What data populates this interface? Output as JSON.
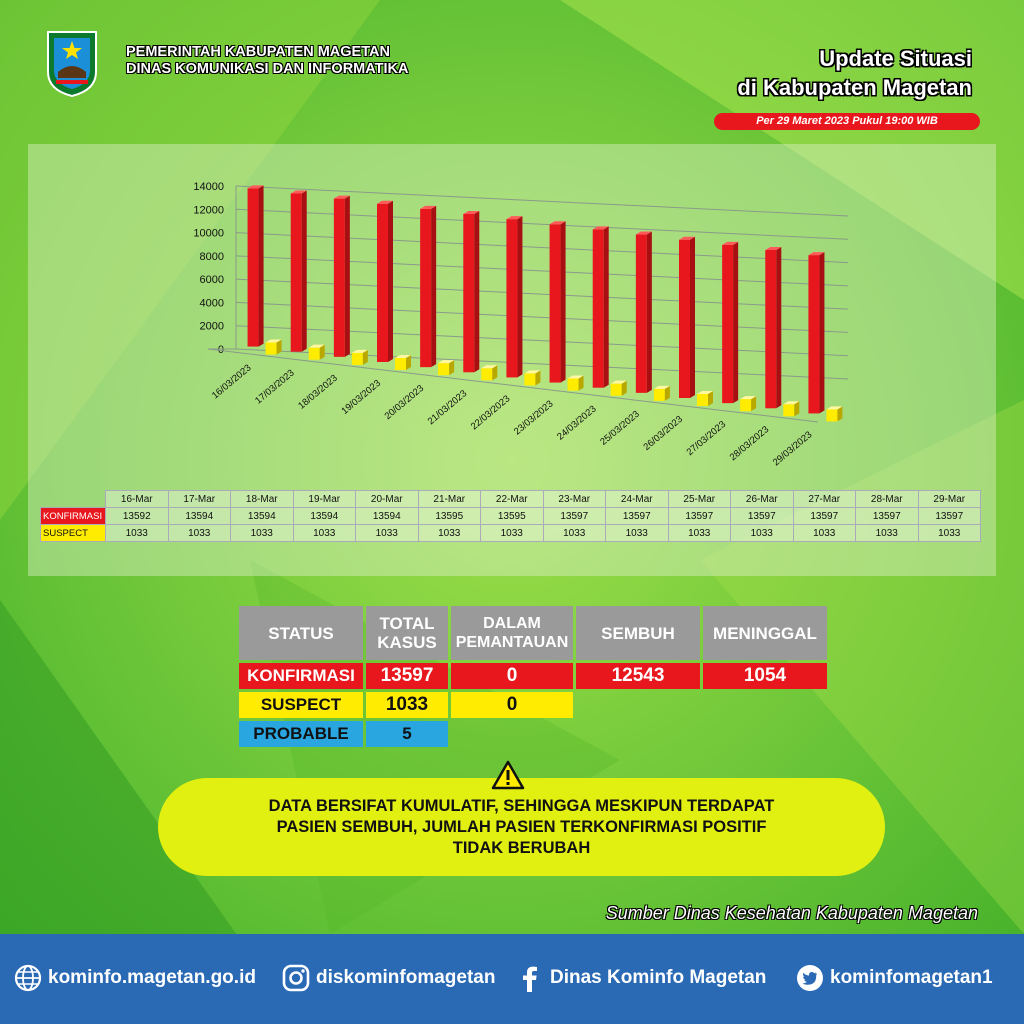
{
  "header": {
    "org_line1": "PEMERINTAH KABUPATEN MAGETAN",
    "org_line2": "DINAS KOMUNIKASI DAN INFORMATIKA",
    "title_line1": "Update Situasi",
    "title_line2": "di Kabupaten Magetan",
    "date": "Per 29 Maret 2023 Pukul 19:00 WIB"
  },
  "colors": {
    "konfirmasi": "#e8171d",
    "suspect": "#ffec00",
    "probable": "#29a5e0",
    "header": "#9a9a9a"
  },
  "chart_data": {
    "type": "bar",
    "categories": [
      "16/03/2023",
      "17/03/2023",
      "18/03/2023",
      "19/03/2023",
      "20/03/2023",
      "21/03/2023",
      "22/03/2023",
      "23/03/2023",
      "24/03/2023",
      "25/03/2023",
      "26/03/2023",
      "27/03/2023",
      "28/03/2023",
      "29/03/2023"
    ],
    "series": [
      {
        "name": "KONFIRMASI",
        "values": [
          13592,
          13594,
          13594,
          13594,
          13594,
          13595,
          13595,
          13597,
          13597,
          13597,
          13597,
          13597,
          13597,
          13597
        ]
      },
      {
        "name": "SUSPECT",
        "values": [
          1033,
          1033,
          1033,
          1033,
          1033,
          1033,
          1033,
          1033,
          1033,
          1033,
          1033,
          1033,
          1033,
          1033
        ]
      }
    ],
    "yticks": [
      "0",
      "2000",
      "4000",
      "6000",
      "8000",
      "10000",
      "12000",
      "14000"
    ],
    "ylim": [
      0,
      14000
    ],
    "table_headers": [
      "16-Mar",
      "17-Mar",
      "18-Mar",
      "19-Mar",
      "20-Mar",
      "21-Mar",
      "22-Mar",
      "23-Mar",
      "24-Mar",
      "25-Mar",
      "26-Mar",
      "27-Mar",
      "28-Mar",
      "29-Mar"
    ]
  },
  "status": {
    "headers": {
      "status": "STATUS",
      "total1": "TOTAL",
      "total2": "KASUS",
      "dalam1": "DALAM",
      "dalam2": "PEMANTAUAN",
      "sembuh": "SEMBUH",
      "meninggal": "MENINGGAL"
    },
    "konfirmasi": {
      "label": "KONFIRMASI",
      "total": "13597",
      "dalam": "0",
      "sembuh": "12543",
      "meninggal": "1054"
    },
    "suspect": {
      "label": "SUSPECT",
      "total": "1033",
      "dalam": "0"
    },
    "probable": {
      "label": "PROBABLE",
      "total": "5"
    }
  },
  "notice": {
    "line1": "DATA BERSIFAT KUMULATIF, SEHINGGA MESKIPUN TERDAPAT",
    "line2": "PASIEN SEMBUH, JUMLAH PASIEN TERKONFIRMASI POSITIF",
    "line3": "TIDAK BERUBAH"
  },
  "source": "Sumber Dinas Kesehatan Kabupaten Magetan",
  "footer": {
    "web": "kominfo.magetan.go.id",
    "instagram": "diskominfomagetan",
    "facebook": "Dinas Kominfo Magetan",
    "twitter": "kominfomagetan1"
  }
}
